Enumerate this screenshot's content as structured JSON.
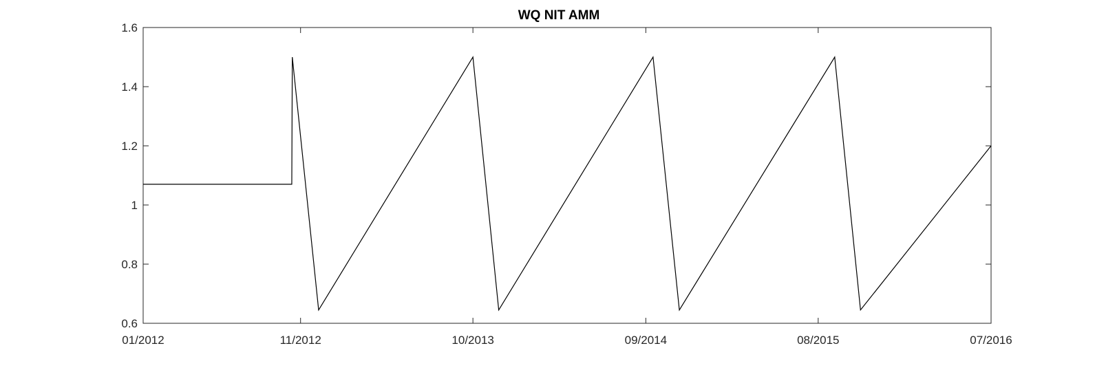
{
  "chart_data": {
    "type": "line",
    "title": "WQ NIT AMM",
    "xlabel": "",
    "ylabel": "",
    "x_tick_labels": [
      "01/2012",
      "11/2012",
      "10/2013",
      "09/2014",
      "08/2015",
      "07/2016"
    ],
    "x_tick_dates": [
      "2012-01-01",
      "2012-11-01",
      "2013-10-01",
      "2014-09-01",
      "2015-08-01",
      "2016-07-01"
    ],
    "xlim": [
      "2012-01-01",
      "2016-07-01"
    ],
    "ylim": [
      0.6,
      1.6
    ],
    "y_ticks": [
      0.6,
      0.8,
      1.0,
      1.2,
      1.4,
      1.6
    ],
    "y_tick_labels": [
      "0.6",
      "0.8",
      "1",
      "1.2",
      "1.4",
      "1.6"
    ],
    "grid": false,
    "box": true,
    "series": [
      {
        "color": "#000000",
        "points": [
          {
            "x": "2012-01-01",
            "y": 1.07
          },
          {
            "x": "2012-10-15",
            "y": 1.07
          },
          {
            "x": "2012-10-16",
            "y": 1.5
          },
          {
            "x": "2012-12-06",
            "y": 0.645
          },
          {
            "x": "2013-10-01",
            "y": 1.5
          },
          {
            "x": "2013-11-20",
            "y": 0.645
          },
          {
            "x": "2014-09-15",
            "y": 1.5
          },
          {
            "x": "2014-11-05",
            "y": 0.645
          },
          {
            "x": "2015-09-02",
            "y": 1.5
          },
          {
            "x": "2015-10-22",
            "y": 0.645
          },
          {
            "x": "2016-07-01",
            "y": 1.2
          }
        ]
      }
    ]
  }
}
